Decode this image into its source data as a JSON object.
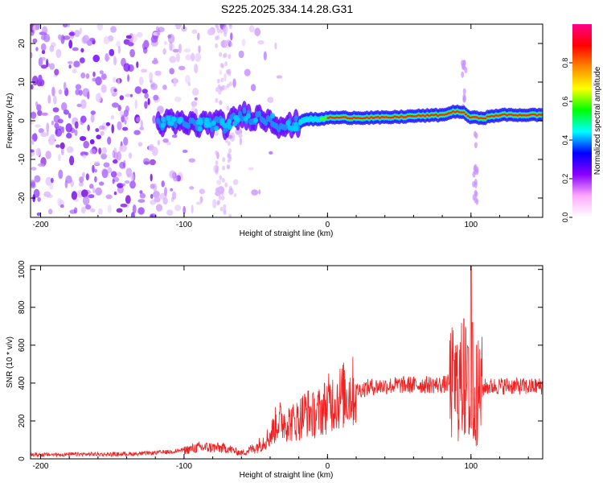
{
  "figure": {
    "title": "S225.2025.334.14.28.G31"
  },
  "chart_data": [
    {
      "type": "heatmap",
      "xlabel": "Height of straight line (km)",
      "ylabel": "Frequency (Hz)",
      "xlim": [
        -207,
        150
      ],
      "ylim": [
        -25,
        25
      ],
      "xticks": [
        -200,
        -100,
        0,
        100
      ],
      "yticks": [
        -20,
        -10,
        0,
        10,
        20
      ],
      "colorbar": {
        "label": "Normalized spectral amplitude",
        "ticks": [
          0.0,
          0.2,
          0.4,
          0.6,
          0.8
        ],
        "range": [
          0,
          1
        ],
        "colormap": [
          "#ffffff",
          "#ffaaff",
          "#8800ff",
          "#0000ff",
          "#00ffff",
          "#00ff00",
          "#ffff00",
          "#ff8800",
          "#ff0000",
          "#ff0088"
        ]
      },
      "ridge": [
        {
          "x": -115,
          "y": -0.5
        },
        {
          "x": -100,
          "y": -0.8
        },
        {
          "x": -90,
          "y": -1.0
        },
        {
          "x": -80,
          "y": -0.6
        },
        {
          "x": -70,
          "y": -1.2
        },
        {
          "x": -60,
          "y": 1.5
        },
        {
          "x": -50,
          "y": 1.0
        },
        {
          "x": -40,
          "y": 0.5
        },
        {
          "x": -33,
          "y": -1.0
        },
        {
          "x": -25,
          "y": -1.5
        },
        {
          "x": -15,
          "y": 0.5
        },
        {
          "x": -5,
          "y": 0.3
        },
        {
          "x": 0,
          "y": 0.8
        },
        {
          "x": 20,
          "y": 0.8
        },
        {
          "x": 40,
          "y": 0.8
        },
        {
          "x": 60,
          "y": 1.2
        },
        {
          "x": 80,
          "y": 1.5
        },
        {
          "x": 90,
          "y": 2.5
        },
        {
          "x": 95,
          "y": 2.0
        },
        {
          "x": 100,
          "y": 0.8
        },
        {
          "x": 110,
          "y": 0.8
        },
        {
          "x": 120,
          "y": 1.5
        },
        {
          "x": 150,
          "y": 1.5
        }
      ]
    },
    {
      "type": "line",
      "xlabel": "Height of straight line (km)",
      "ylabel": "SNR (10 * v/v)",
      "xlim": [
        -207,
        150
      ],
      "ylim": [
        0,
        1020
      ],
      "xticks": [
        -200,
        -100,
        0,
        100
      ],
      "yticks": [
        0,
        200,
        400,
        600,
        800,
        1000
      ],
      "series": [
        {
          "name": "SNR",
          "color": "#ee2222",
          "x": [
            -207,
            -190,
            -170,
            -150,
            -130,
            -110,
            -100,
            -90,
            -80,
            -70,
            -60,
            -50,
            -40,
            -35,
            -30,
            -25,
            -20,
            -15,
            -10,
            -5,
            0,
            10,
            20,
            30,
            40,
            50,
            60,
            70,
            80,
            85,
            90,
            95,
            98,
            100,
            102,
            105,
            110,
            120,
            130,
            140,
            150
          ],
          "values": [
            20,
            20,
            22,
            22,
            25,
            35,
            45,
            60,
            60,
            55,
            30,
            60,
            120,
            200,
            200,
            190,
            210,
            250,
            230,
            250,
            290,
            330,
            360,
            380,
            385,
            390,
            390,
            392,
            390,
            400,
            380,
            420,
            380,
            150,
            200,
            350,
            380,
            385,
            385,
            380,
            385
          ],
          "peaks": [
            {
              "x": 88,
              "y": 520
            },
            {
              "x": 95,
              "y": 740
            },
            {
              "x": 98,
              "y": 590
            },
            {
              "x": 100,
              "y": 1020
            },
            {
              "x": 101,
              "y": 720
            },
            {
              "x": 104,
              "y": 600
            }
          ]
        }
      ]
    }
  ]
}
